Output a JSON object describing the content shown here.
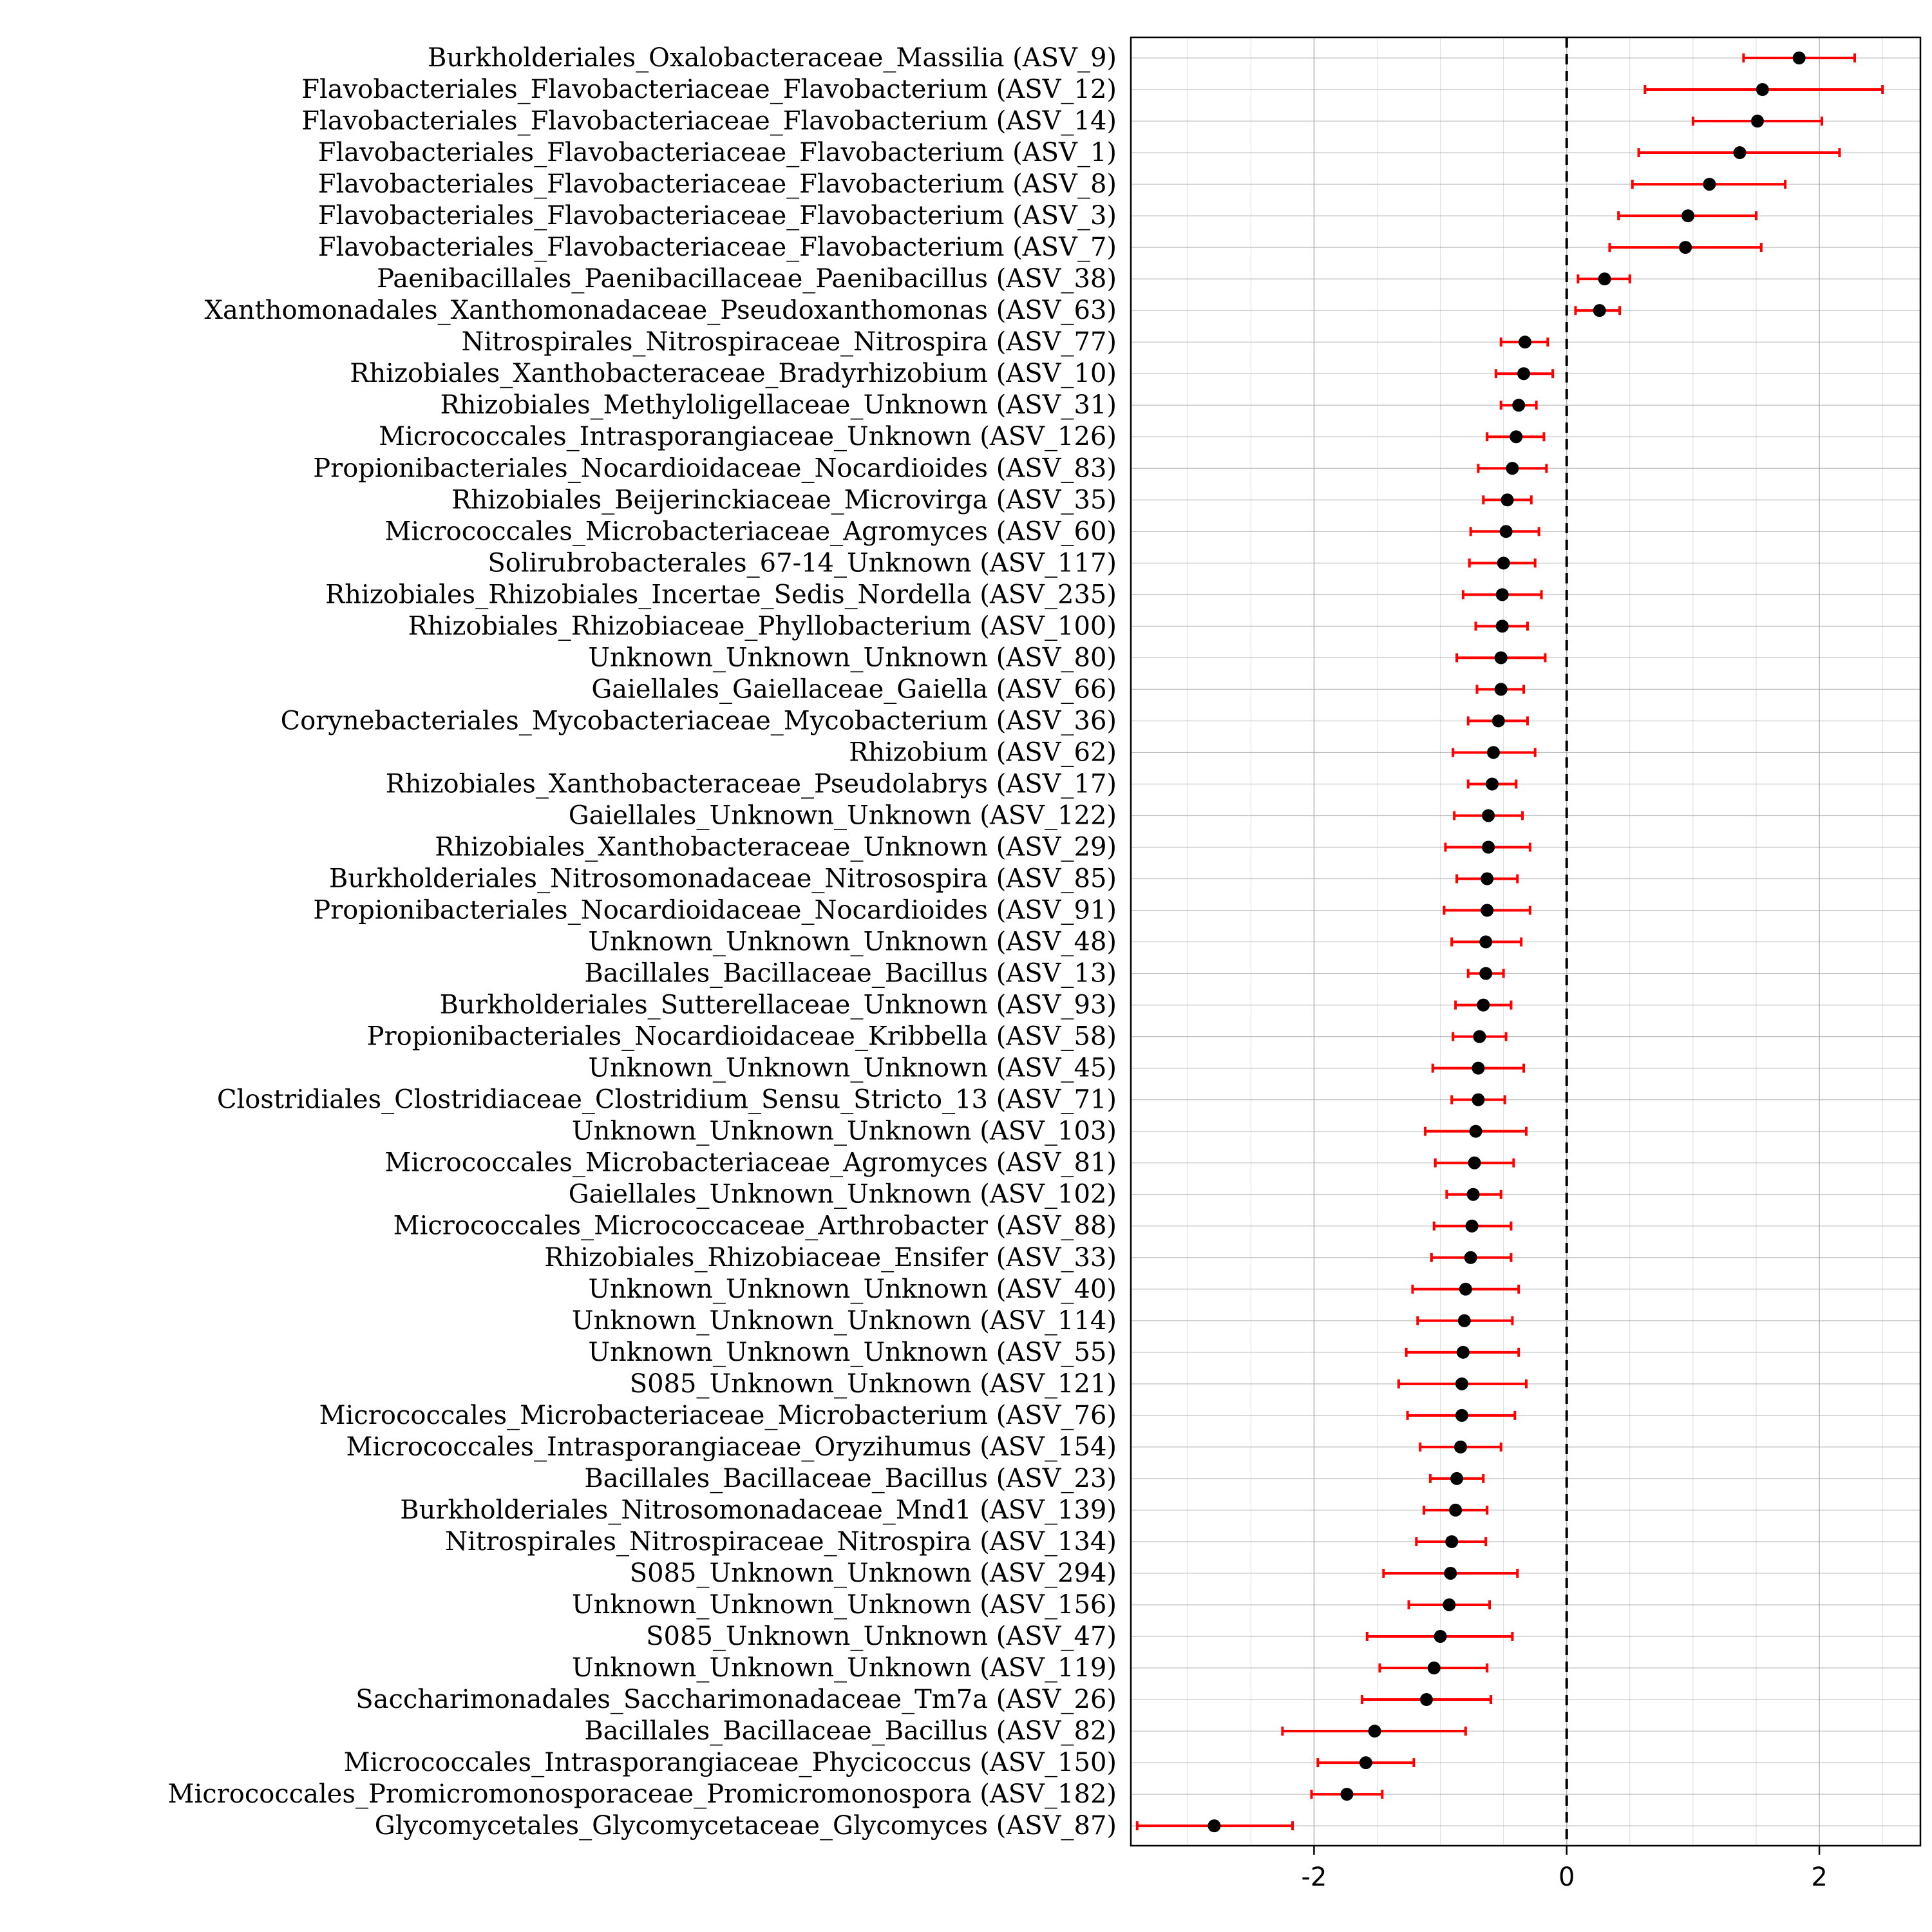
{
  "chart_data": {
    "type": "scatter",
    "title": "",
    "xlabel": "",
    "ylabel": "",
    "xlim": [
      -3.45,
      2.8
    ],
    "x_ticks": [
      -2,
      0,
      2
    ],
    "x_tick_labels": [
      "-2",
      "0",
      "2"
    ],
    "reference_line_x": 0,
    "grid": true,
    "legend": "none",
    "colors": {
      "point": "#000000",
      "error_bar": "#ff0000",
      "grid": "#b0b0b0",
      "reference_line": "#000000"
    },
    "series": [
      {
        "points": [
          {
            "label": "Burkholderiales_Oxalobacteraceae_Massilia (ASV_9)",
            "x": 1.84,
            "lo": 1.4,
            "hi": 2.28
          },
          {
            "label": "Flavobacteriales_Flavobacteriaceae_Flavobacterium (ASV_12)",
            "x": 1.55,
            "lo": 0.62,
            "hi": 2.5
          },
          {
            "label": "Flavobacteriales_Flavobacteriaceae_Flavobacterium (ASV_14)",
            "x": 1.51,
            "lo": 1.0,
            "hi": 2.02
          },
          {
            "label": "Flavobacteriales_Flavobacteriaceae_Flavobacterium (ASV_1)",
            "x": 1.37,
            "lo": 0.57,
            "hi": 2.16
          },
          {
            "label": "Flavobacteriales_Flavobacteriaceae_Flavobacterium (ASV_8)",
            "x": 1.13,
            "lo": 0.52,
            "hi": 1.73
          },
          {
            "label": "Flavobacteriales_Flavobacteriaceae_Flavobacterium (ASV_3)",
            "x": 0.96,
            "lo": 0.41,
            "hi": 1.5
          },
          {
            "label": "Flavobacteriales_Flavobacteriaceae_Flavobacterium (ASV_7)",
            "x": 0.94,
            "lo": 0.34,
            "hi": 1.54
          },
          {
            "label": "Paenibacillales_Paenibacillaceae_Paenibacillus (ASV_38)",
            "x": 0.3,
            "lo": 0.09,
            "hi": 0.5
          },
          {
            "label": "Xanthomonadales_Xanthomonadaceae_Pseudoxanthomonas (ASV_63)",
            "x": 0.26,
            "lo": 0.07,
            "hi": 0.42
          },
          {
            "label": "Nitrospirales_Nitrospiraceae_Nitrospira (ASV_77)",
            "x": -0.33,
            "lo": -0.52,
            "hi": -0.15
          },
          {
            "label": "Rhizobiales_Xanthobacteraceae_Bradyrhizobium (ASV_10)",
            "x": -0.34,
            "lo": -0.56,
            "hi": -0.11
          },
          {
            "label": "Rhizobiales_Methyloligellaceae_Unknown (ASV_31)",
            "x": -0.38,
            "lo": -0.52,
            "hi": -0.24
          },
          {
            "label": "Micrococcales_Intrasporangiaceae_Unknown (ASV_126)",
            "x": -0.4,
            "lo": -0.63,
            "hi": -0.18
          },
          {
            "label": "Propionibacteriales_Nocardioidaceae_Nocardioides (ASV_83)",
            "x": -0.43,
            "lo": -0.7,
            "hi": -0.16
          },
          {
            "label": "Rhizobiales_Beijerinckiaceae_Microvirga (ASV_35)",
            "x": -0.47,
            "lo": -0.66,
            "hi": -0.28
          },
          {
            "label": "Micrococcales_Microbacteriaceae_Agromyces (ASV_60)",
            "x": -0.48,
            "lo": -0.76,
            "hi": -0.22
          },
          {
            "label": "Solirubrobacterales_67-14_Unknown (ASV_117)",
            "x": -0.5,
            "lo": -0.77,
            "hi": -0.25
          },
          {
            "label": "Rhizobiales_Rhizobiales_Incertae_Sedis_Nordella (ASV_235)",
            "x": -0.51,
            "lo": -0.82,
            "hi": -0.2
          },
          {
            "label": "Rhizobiales_Rhizobiaceae_Phyllobacterium (ASV_100)",
            "x": -0.51,
            "lo": -0.72,
            "hi": -0.31
          },
          {
            "label": "Unknown_Unknown_Unknown (ASV_80)",
            "x": -0.52,
            "lo": -0.87,
            "hi": -0.17
          },
          {
            "label": "Gaiellales_Gaiellaceae_Gaiella (ASV_66)",
            "x": -0.52,
            "lo": -0.71,
            "hi": -0.34
          },
          {
            "label": "Corynebacteriales_Mycobacteriaceae_Mycobacterium (ASV_36)",
            "x": -0.54,
            "lo": -0.78,
            "hi": -0.31
          },
          {
            "label": "Rhizobium (ASV_62)",
            "x": -0.58,
            "lo": -0.9,
            "hi": -0.25
          },
          {
            "label": "Rhizobiales_Xanthobacteraceae_Pseudolabrys (ASV_17)",
            "x": -0.59,
            "lo": -0.78,
            "hi": -0.4
          },
          {
            "label": "Gaiellales_Unknown_Unknown (ASV_122)",
            "x": -0.62,
            "lo": -0.89,
            "hi": -0.35
          },
          {
            "label": "Rhizobiales_Xanthobacteraceae_Unknown (ASV_29)",
            "x": -0.62,
            "lo": -0.96,
            "hi": -0.29
          },
          {
            "label": "Burkholderiales_Nitrosomonadaceae_Nitrosospira (ASV_85)",
            "x": -0.63,
            "lo": -0.87,
            "hi": -0.39
          },
          {
            "label": "Propionibacteriales_Nocardioidaceae_Nocardioides (ASV_91)",
            "x": -0.63,
            "lo": -0.97,
            "hi": -0.29
          },
          {
            "label": "Unknown_Unknown_Unknown (ASV_48)",
            "x": -0.64,
            "lo": -0.91,
            "hi": -0.36
          },
          {
            "label": "Bacillales_Bacillaceae_Bacillus (ASV_13)",
            "x": -0.64,
            "lo": -0.78,
            "hi": -0.5
          },
          {
            "label": "Burkholderiales_Sutterellaceae_Unknown (ASV_93)",
            "x": -0.66,
            "lo": -0.88,
            "hi": -0.44
          },
          {
            "label": "Propionibacteriales_Nocardioidaceae_Kribbella (ASV_58)",
            "x": -0.69,
            "lo": -0.9,
            "hi": -0.48
          },
          {
            "label": "Unknown_Unknown_Unknown (ASV_45)",
            "x": -0.7,
            "lo": -1.06,
            "hi": -0.34
          },
          {
            "label": "Clostridiales_Clostridiaceae_Clostridium_Sensu_Stricto_13 (ASV_71)",
            "x": -0.7,
            "lo": -0.91,
            "hi": -0.49
          },
          {
            "label": "Unknown_Unknown_Unknown (ASV_103)",
            "x": -0.72,
            "lo": -1.12,
            "hi": -0.32
          },
          {
            "label": "Micrococcales_Microbacteriaceae_Agromyces (ASV_81)",
            "x": -0.73,
            "lo": -1.04,
            "hi": -0.42
          },
          {
            "label": "Gaiellales_Unknown_Unknown (ASV_102)",
            "x": -0.74,
            "lo": -0.95,
            "hi": -0.52
          },
          {
            "label": "Micrococcales_Micrococcaceae_Arthrobacter (ASV_88)",
            "x": -0.75,
            "lo": -1.05,
            "hi": -0.44
          },
          {
            "label": "Rhizobiales_Rhizobiaceae_Ensifer (ASV_33)",
            "x": -0.76,
            "lo": -1.07,
            "hi": -0.44
          },
          {
            "label": "Unknown_Unknown_Unknown (ASV_40)",
            "x": -0.8,
            "lo": -1.22,
            "hi": -0.38
          },
          {
            "label": "Unknown_Unknown_Unknown (ASV_114)",
            "x": -0.81,
            "lo": -1.18,
            "hi": -0.43
          },
          {
            "label": "Unknown_Unknown_Unknown (ASV_55)",
            "x": -0.82,
            "lo": -1.27,
            "hi": -0.38
          },
          {
            "label": "S085_Unknown_Unknown (ASV_121)",
            "x": -0.83,
            "lo": -1.33,
            "hi": -0.32
          },
          {
            "label": "Micrococcales_Microbacteriaceae_Microbacterium (ASV_76)",
            "x": -0.83,
            "lo": -1.26,
            "hi": -0.41
          },
          {
            "label": "Micrococcales_Intrasporangiaceae_Oryzihumus (ASV_154)",
            "x": -0.84,
            "lo": -1.16,
            "hi": -0.52
          },
          {
            "label": "Bacillales_Bacillaceae_Bacillus (ASV_23)",
            "x": -0.87,
            "lo": -1.08,
            "hi": -0.66
          },
          {
            "label": "Burkholderiales_Nitrosomonadaceae_Mnd1 (ASV_139)",
            "x": -0.88,
            "lo": -1.13,
            "hi": -0.63
          },
          {
            "label": "Nitrospirales_Nitrospiraceae_Nitrospira (ASV_134)",
            "x": -0.91,
            "lo": -1.19,
            "hi": -0.64
          },
          {
            "label": "S085_Unknown_Unknown (ASV_294)",
            "x": -0.92,
            "lo": -1.45,
            "hi": -0.39
          },
          {
            "label": "Unknown_Unknown_Unknown (ASV_156)",
            "x": -0.93,
            "lo": -1.25,
            "hi": -0.61
          },
          {
            "label": "S085_Unknown_Unknown (ASV_47)",
            "x": -1.0,
            "lo": -1.58,
            "hi": -0.43
          },
          {
            "label": "Unknown_Unknown_Unknown (ASV_119)",
            "x": -1.05,
            "lo": -1.48,
            "hi": -0.63
          },
          {
            "label": "Saccharimonadales_Saccharimonadaceae_Tm7a (ASV_26)",
            "x": -1.11,
            "lo": -1.62,
            "hi": -0.6
          },
          {
            "label": "Bacillales_Bacillaceae_Bacillus (ASV_82)",
            "x": -1.52,
            "lo": -2.25,
            "hi": -0.8
          },
          {
            "label": "Micrococcales_Intrasporangiaceae_Phycicoccus (ASV_150)",
            "x": -1.59,
            "lo": -1.97,
            "hi": -1.21
          },
          {
            "label": "Micrococcales_Promicromonosporaceae_Promicromonospora (ASV_182)",
            "x": -1.74,
            "lo": -2.02,
            "hi": -1.46
          },
          {
            "label": "Glycomycetales_Glycomycetaceae_Glycomyces (ASV_87)",
            "x": -2.79,
            "lo": -3.4,
            "hi": -2.17
          }
        ]
      }
    ]
  }
}
